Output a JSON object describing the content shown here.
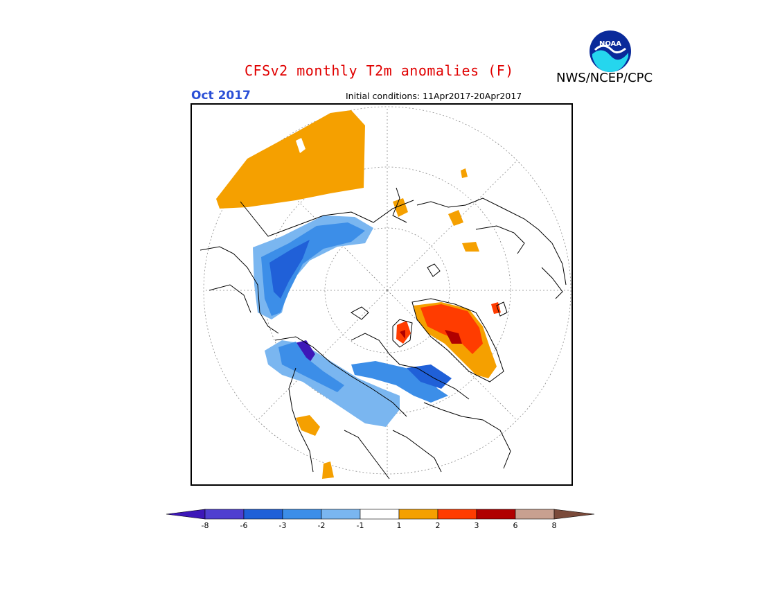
{
  "header": {
    "title": "CFSv2 monthly T2m anomalies (F)",
    "title_color": "#e00000",
    "agency": "NWS/NCEP/CPC",
    "logo_text": "NOAA",
    "month": "Oct 2017",
    "month_color": "#2a4fd6",
    "initial_conditions": "Initial conditions: 11Apr2017-20Apr2017"
  },
  "legend": {
    "ticks": [
      "-8",
      "-6",
      "-3",
      "-2",
      "-1",
      "1",
      "2",
      "3",
      "6",
      "8"
    ],
    "colors": [
      "#3d17b8",
      "#4f3fd0",
      "#2060d8",
      "#3c8ee8",
      "#7ab6f0",
      "#ffffff",
      "#f5a000",
      "#ff3c00",
      "#b00000",
      "#c8a090",
      "#7a4a3a"
    ]
  }
}
